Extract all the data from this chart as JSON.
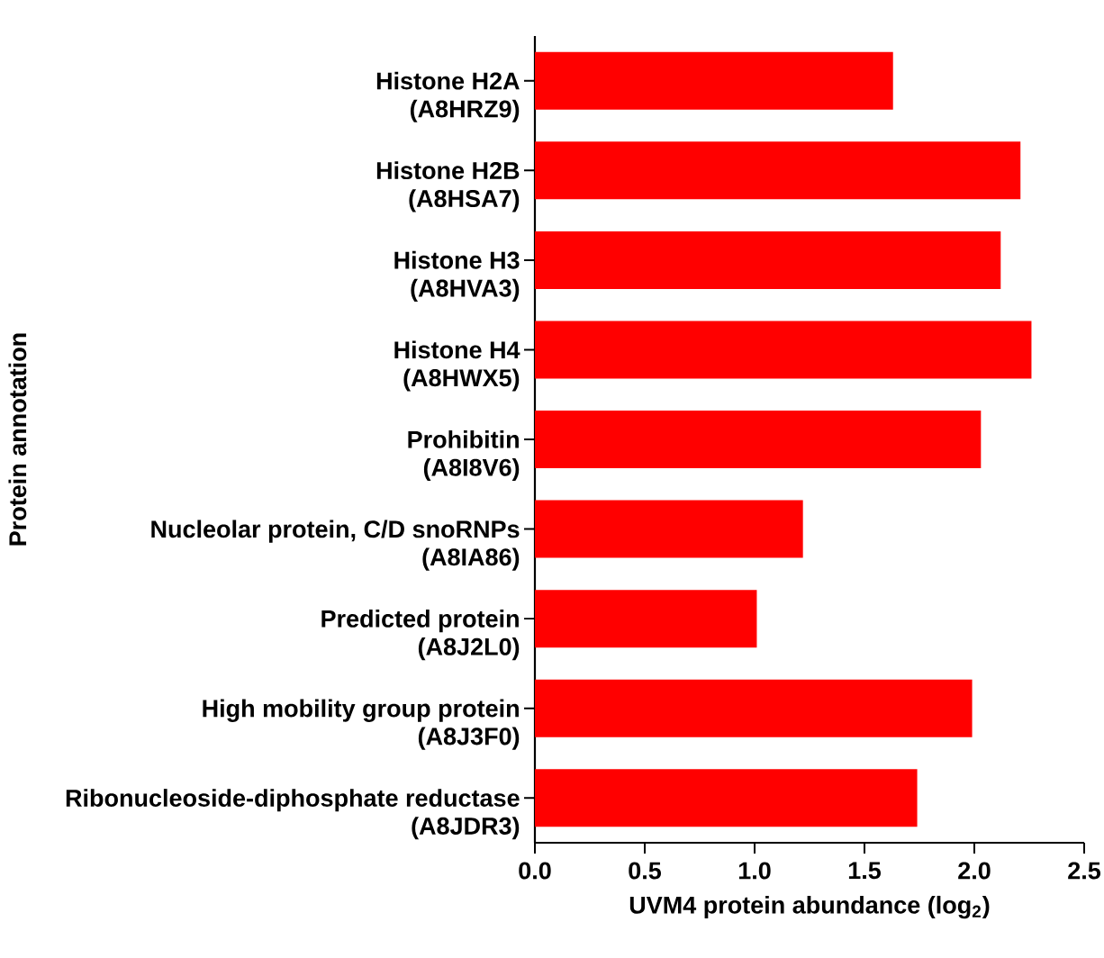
{
  "chart_data": {
    "type": "bar",
    "orientation": "horizontal",
    "xlabel": "UVM4 protein abundance (log$_{2}$)",
    "ylabel": "Protein annotation",
    "categories": [
      "Histone H2A\n(A8HRZ9)",
      "Histone H2B\n(A8HSA7)",
      "Histone H3\n(A8HVA3)",
      "Histone H4\n(A8HWX5)",
      "Prohibitin\n(A8I8V6)",
      "Nucleolar protein, C/D snoRNPs\n(A8IA86)",
      "Predicted protein\n(A8J2L0)",
      "High mobility group protein\n(A8J3F0)",
      "Ribonucleoside-diphosphate reductase\n(A8JDR3)"
    ],
    "values": [
      1.63,
      2.21,
      2.12,
      2.26,
      2.03,
      1.22,
      1.01,
      1.99,
      1.74
    ],
    "color": "#ff0000",
    "xlim": [
      0,
      2.5
    ],
    "xticks": [
      {
        "value": 0,
        "label": "0.0"
      },
      {
        "value": 0.5,
        "label": "0.5"
      },
      {
        "value": 1,
        "label": "1.0"
      },
      {
        "value": 1.5,
        "label": "1.5"
      },
      {
        "value": 2,
        "label": "2.0"
      },
      {
        "value": 2.5,
        "label": "2.5"
      }
    ]
  }
}
